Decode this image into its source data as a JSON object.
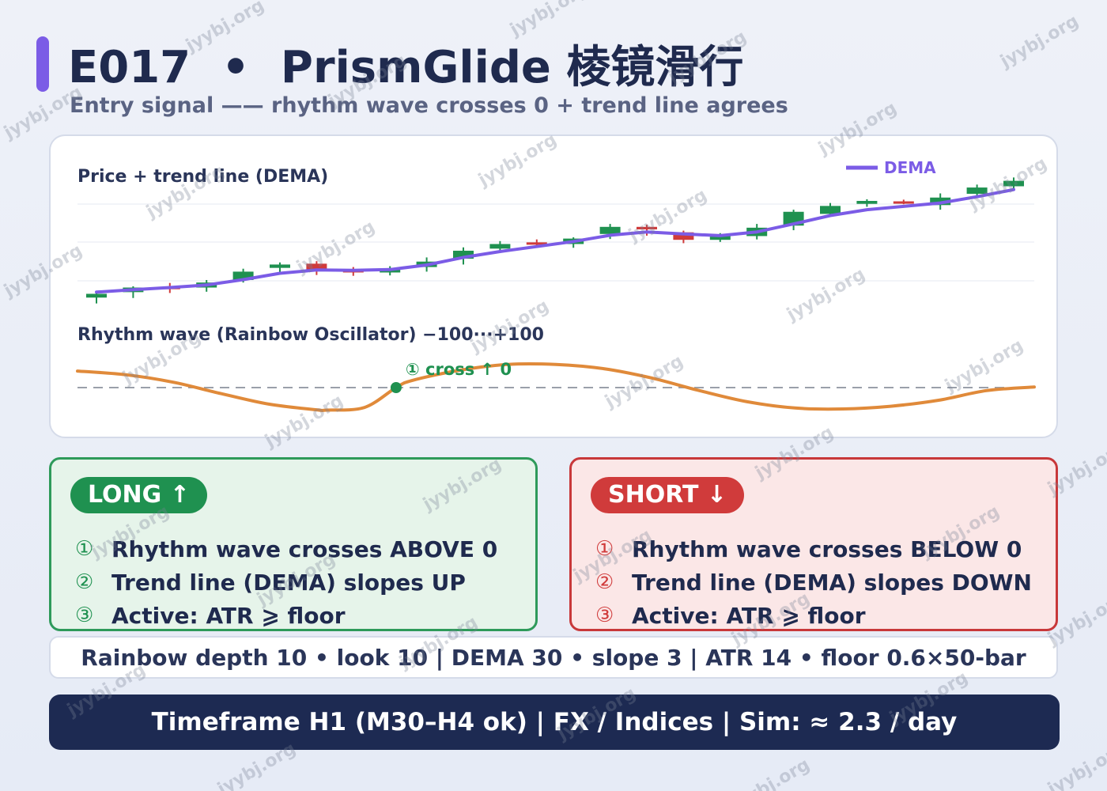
{
  "header": {
    "title": "E017  •  PrismGlide 棱镜滑行",
    "subtitle": "Entry signal —— rhythm wave crosses 0  +  trend line agrees"
  },
  "colors": {
    "accent": "#7b5ce6",
    "bull": "#1f9150",
    "bear": "#d03b3b",
    "dema": "#7b5ce6",
    "oscillator": "#e08a3a",
    "navy": "#1d2a52"
  },
  "chart_data": [
    {
      "type": "candlestick",
      "title": "Price + trend line (DEMA)",
      "legend": [
        "DEMA"
      ],
      "legend_position": "top-right",
      "grid": true,
      "series": [
        {
          "kind": "ohlc",
          "values": [
            {
              "o": 0.2,
              "h": 1.5,
              "l": -1.2,
              "c": 1.1
            },
            {
              "o": 1.5,
              "h": 2.9,
              "l": 0.1,
              "c": 2.6
            },
            {
              "o": 2.8,
              "h": 3.7,
              "l": 1.3,
              "c": 2.2
            },
            {
              "o": 2.6,
              "h": 4.4,
              "l": 1.6,
              "c": 3.8
            },
            {
              "o": 4.4,
              "h": 7.1,
              "l": 3.8,
              "c": 6.4
            },
            {
              "o": 7.3,
              "h": 8.6,
              "l": 6.1,
              "c": 8.1
            },
            {
              "o": 8.3,
              "h": 8.9,
              "l": 5.6,
              "c": 6.9
            },
            {
              "o": 6.9,
              "h": 7.5,
              "l": 5.4,
              "c": 6.2
            },
            {
              "o": 6.2,
              "h": 7.7,
              "l": 5.5,
              "c": 7.0
            },
            {
              "o": 7.5,
              "h": 9.8,
              "l": 6.4,
              "c": 8.8
            },
            {
              "o": 9.5,
              "h": 12.2,
              "l": 8.1,
              "c": 11.4
            },
            {
              "o": 11.9,
              "h": 13.7,
              "l": 10.9,
              "c": 13.0
            },
            {
              "o": 13.4,
              "h": 14.1,
              "l": 12.6,
              "c": 13.0
            },
            {
              "o": 13.0,
              "h": 14.6,
              "l": 12.1,
              "c": 14.3
            },
            {
              "o": 15.4,
              "h": 17.8,
              "l": 14.2,
              "c": 17.1
            },
            {
              "o": 17.1,
              "h": 17.6,
              "l": 15.0,
              "c": 16.5
            },
            {
              "o": 15.8,
              "h": 16.2,
              "l": 13.2,
              "c": 14.0
            },
            {
              "o": 14.0,
              "h": 15.6,
              "l": 13.5,
              "c": 15.1
            },
            {
              "o": 14.9,
              "h": 17.8,
              "l": 14.1,
              "c": 16.9
            },
            {
              "o": 17.4,
              "h": 21.2,
              "l": 16.3,
              "c": 20.7
            },
            {
              "o": 20.2,
              "h": 22.8,
              "l": 19.8,
              "c": 22.1
            },
            {
              "o": 22.6,
              "h": 23.7,
              "l": 21.9,
              "c": 23.3
            },
            {
              "o": 23.2,
              "h": 23.6,
              "l": 22.5,
              "c": 22.8
            },
            {
              "o": 22.3,
              "h": 25.1,
              "l": 21.2,
              "c": 24.1
            },
            {
              "o": 25.0,
              "h": 27.2,
              "l": 24.6,
              "c": 26.5
            },
            {
              "o": 26.8,
              "h": 28.9,
              "l": 26.1,
              "c": 28.1
            }
          ]
        },
        {
          "name": "DEMA",
          "kind": "line",
          "values": [
            1.5,
            2.1,
            2.6,
            3.2,
            4.5,
            6.0,
            6.8,
            6.7,
            6.9,
            8.0,
            9.8,
            11.2,
            12.4,
            13.6,
            15.1,
            15.9,
            15.4,
            15.0,
            15.9,
            17.8,
            19.8,
            21.2,
            22.0,
            22.8,
            24.3,
            26.0
          ]
        }
      ]
    },
    {
      "type": "line",
      "title": "Rhythm wave (Rainbow Oscillator)  −100···+100",
      "ylim": [
        -100,
        100
      ],
      "reference_line": 0,
      "annotation": {
        "text": "① cross ↑ 0",
        "x": 0.333,
        "y": 0
      },
      "series": [
        {
          "name": "Rainbow Oscillator",
          "x": [
            0,
            0.05,
            0.1,
            0.15,
            0.2,
            0.25,
            0.26,
            0.3,
            0.333,
            0.35,
            0.4,
            0.45,
            0.5,
            0.55,
            0.6,
            0.65,
            0.7,
            0.75,
            0.8,
            0.85,
            0.9,
            0.95,
            1.0
          ],
          "values": [
            55,
            43,
            18,
            -20,
            -55,
            -74,
            -75,
            -66,
            0,
            24,
            58,
            77,
            77,
            63,
            32,
            -10,
            -47,
            -68,
            -71,
            -62,
            -42,
            -10,
            2
          ]
        }
      ]
    }
  ],
  "long": {
    "badge": "LONG ↑",
    "rules": [
      {
        "num": "①",
        "text": "Rhythm wave crosses ABOVE 0"
      },
      {
        "num": "②",
        "text": "Trend line (DEMA) slopes UP"
      },
      {
        "num": "③",
        "text": "Active: ATR ⩾ floor"
      }
    ]
  },
  "short": {
    "badge": "SHORT ↓",
    "rules": [
      {
        "num": "①",
        "text": "Rhythm wave crosses BELOW 0"
      },
      {
        "num": "②",
        "text": "Trend line (DEMA) slopes DOWN"
      },
      {
        "num": "③",
        "text": "Active: ATR ⩾ floor"
      }
    ]
  },
  "params": "Rainbow depth 10  •  look 10  |  DEMA 30  •  slope 3  |  ATR 14  •  floor 0.6×50-bar",
  "footer": "Timeframe H1 (M30–H4 ok)  |  FX / Indices  |  Sim: ≈ 2.3 / day",
  "watermark": "jyybj.org"
}
